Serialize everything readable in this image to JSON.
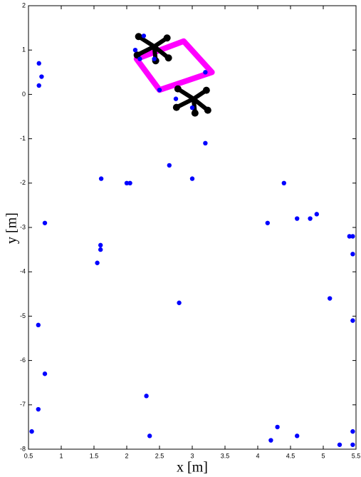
{
  "chart_data": {
    "type": "scatter",
    "xlabel": "x [m]",
    "ylabel": "y [m]",
    "xlim": [
      0.5,
      5.5
    ],
    "ylim": [
      -8,
      2
    ],
    "xticks": [
      0.5,
      1,
      1.5,
      2,
      2.5,
      3,
      3.5,
      4,
      4.5,
      5,
      5.5
    ],
    "yticks": [
      -8,
      -7,
      -6,
      -5,
      -4,
      -3,
      -2,
      -1,
      0,
      1,
      2
    ],
    "series": [
      {
        "color": "#ff00ff",
        "style": "line",
        "x": [
          2.15,
          2.5,
          3.3,
          2.87
        ],
        "values": [
          0.8,
          0.1,
          0.5,
          1.2
        ]
      },
      {
        "color": "#000000",
        "style": "asterisk",
        "x": [
          2.42,
          3.02
        ],
        "values": [
          1.08,
          -0.1
        ]
      },
      {
        "color": "#0000ff",
        "style": "dot",
        "x": [
          0.66,
          0.7,
          0.66,
          3.2,
          3.2,
          2.65,
          1.61,
          2.0,
          2.05,
          3.0,
          4.4,
          0.75,
          1.6,
          1.6,
          1.55,
          2.8,
          4.15,
          4.6,
          4.8,
          4.9,
          5.4,
          5.45,
          5.45,
          5.1,
          5.45,
          0.65,
          0.75,
          2.3,
          0.65,
          0.55,
          2.35,
          4.3,
          4.2,
          4.6,
          5.25,
          5.45,
          5.45,
          2.26,
          2.13,
          2.2,
          2.42,
          2.5,
          2.75,
          3.0
        ],
        "values": [
          0.7,
          0.4,
          0.2,
          0.5,
          -1.1,
          -1.6,
          -1.9,
          -2.0,
          -2.0,
          -1.9,
          -2.0,
          -2.9,
          -3.4,
          -3.5,
          -3.8,
          -4.7,
          -2.9,
          -2.8,
          -2.8,
          -2.7,
          -3.2,
          -3.2,
          -3.6,
          -4.6,
          -5.1,
          -5.2,
          -6.3,
          -6.8,
          -7.1,
          -7.6,
          -7.7,
          -7.5,
          -7.8,
          -7.7,
          -7.9,
          -7.9,
          -7.6,
          1.32,
          1.0,
          0.8,
          0.8,
          0.1,
          -0.1,
          -0.3
        ]
      }
    ]
  }
}
